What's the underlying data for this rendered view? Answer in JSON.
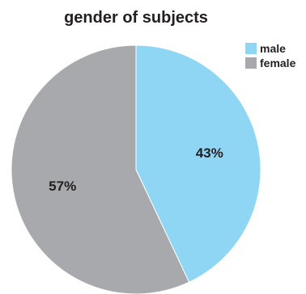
{
  "chart_data": {
    "type": "pie",
    "title": "gender of subjects",
    "slices": [
      {
        "name": "male",
        "value": 43,
        "label": "43%",
        "color": "#8fd6f4"
      },
      {
        "name": "female",
        "value": 57,
        "label": "57%",
        "color": "#a7a9ac"
      }
    ],
    "legend_placement": "top-right",
    "start": "12 o'clock, clockwise"
  }
}
